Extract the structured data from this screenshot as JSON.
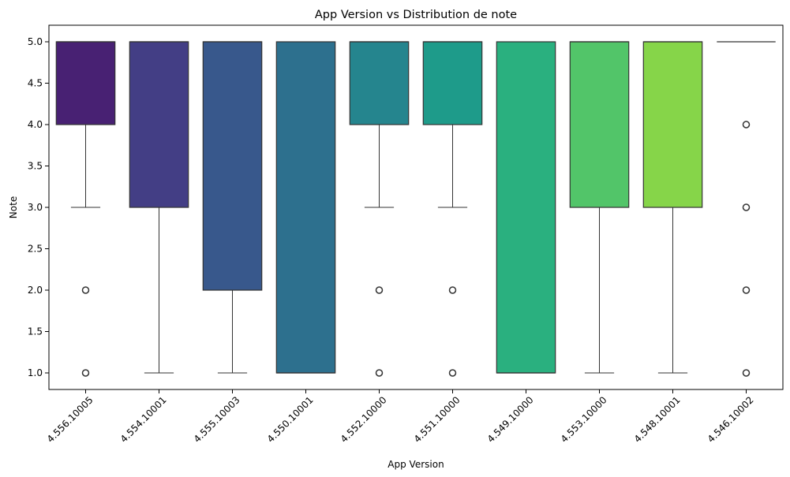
{
  "chart_data": {
    "type": "box",
    "title": "App Version vs Distribution de note",
    "xlabel": "App Version",
    "ylabel": "Note",
    "ylim": [
      0.8,
      5.2
    ],
    "yticks": [
      "1.0",
      "1.5",
      "2.0",
      "2.5",
      "3.0",
      "3.5",
      "4.0",
      "4.5",
      "5.0"
    ],
    "grid": false,
    "legend": "none",
    "categories": [
      "4.556.10005",
      "4.554.10001",
      "4.555.10003",
      "4.550.10001",
      "4.552.10000",
      "4.551.10000",
      "4.549.10000",
      "4.553.10000",
      "4.548.10001",
      "4.546.10002"
    ],
    "boxes": [
      {
        "category": "4.556.10005",
        "q1": 4,
        "median": 5,
        "q3": 5,
        "whisker_low": 3,
        "whisker_high": 5,
        "outliers": [
          2,
          1
        ],
        "color": "#482173"
      },
      {
        "category": "4.554.10001",
        "q1": 3,
        "median": 5,
        "q3": 5,
        "whisker_low": 1,
        "whisker_high": 5,
        "outliers": [],
        "color": "#433e85"
      },
      {
        "category": "4.555.10003",
        "q1": 2,
        "median": 5,
        "q3": 5,
        "whisker_low": 1,
        "whisker_high": 5,
        "outliers": [],
        "color": "#38588c"
      },
      {
        "category": "4.550.10001",
        "q1": 1,
        "median": 1,
        "q3": 5,
        "whisker_low": 1,
        "whisker_high": 5,
        "outliers": [],
        "color": "#2d708e"
      },
      {
        "category": "4.552.10000",
        "q1": 4,
        "median": 5,
        "q3": 5,
        "whisker_low": 3,
        "whisker_high": 5,
        "outliers": [
          2,
          1
        ],
        "color": "#25858e"
      },
      {
        "category": "4.551.10000",
        "q1": 4,
        "median": 5,
        "q3": 5,
        "whisker_low": 3,
        "whisker_high": 5,
        "outliers": [
          2,
          1
        ],
        "color": "#1e9b8a"
      },
      {
        "category": "4.549.10000",
        "q1": 1,
        "median": 1,
        "q3": 5,
        "whisker_low": 1,
        "whisker_high": 5,
        "outliers": [],
        "color": "#2ab07f"
      },
      {
        "category": "4.553.10000",
        "q1": 3,
        "median": 5,
        "q3": 5,
        "whisker_low": 1,
        "whisker_high": 5,
        "outliers": [],
        "color": "#52c569"
      },
      {
        "category": "4.548.10001",
        "q1": 3,
        "median": 5,
        "q3": 5,
        "whisker_low": 1,
        "whisker_high": 5,
        "outliers": [],
        "color": "#86d549"
      },
      {
        "category": "4.546.10002",
        "q1": 5,
        "median": 5,
        "q3": 5,
        "whisker_low": 5,
        "whisker_high": 5,
        "outliers": [
          4,
          3,
          2,
          1
        ],
        "color": "#c2df23"
      }
    ]
  }
}
